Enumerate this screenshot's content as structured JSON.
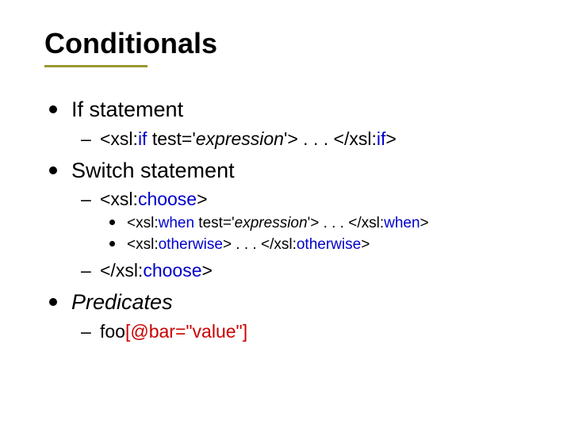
{
  "title": "Conditionals",
  "accent_color": "#999933",
  "text_color": "#000000",
  "blue": "#0000cc",
  "red": "#cc0000",
  "items": [
    {
      "label": "If statement",
      "sub": [
        {
          "prefix": "<xsl:",
          "blue1": "if",
          "mid1": " test='",
          "italic": "expression",
          "mid2": "'> . . . </xsl:",
          "blue2": "if",
          "suffix": ">"
        }
      ]
    },
    {
      "label": "Switch statement",
      "sub": [
        {
          "prefix": "<xsl:",
          "blue1": "choose",
          "suffix": ">",
          "sub": [
            {
              "prefix": "<xsl:",
              "blue1": "when",
              "mid1": " test='",
              "italic": "expression",
              "mid2": "'> . . . </xsl:",
              "blue2": "when",
              "suffix": ">"
            },
            {
              "prefix": "<xsl:",
              "blue1": "otherwise",
              "mid1": "> . . . </xsl:",
              "blue2": "otherwise",
              "suffix": ">"
            }
          ]
        },
        {
          "prefix": "</xsl:",
          "blue1": "choose",
          "suffix": ">"
        }
      ]
    },
    {
      "label_italic": "Predicates",
      "sub": [
        {
          "text_before": "foo",
          "red": "[@bar=\"value\"]"
        }
      ]
    }
  ]
}
